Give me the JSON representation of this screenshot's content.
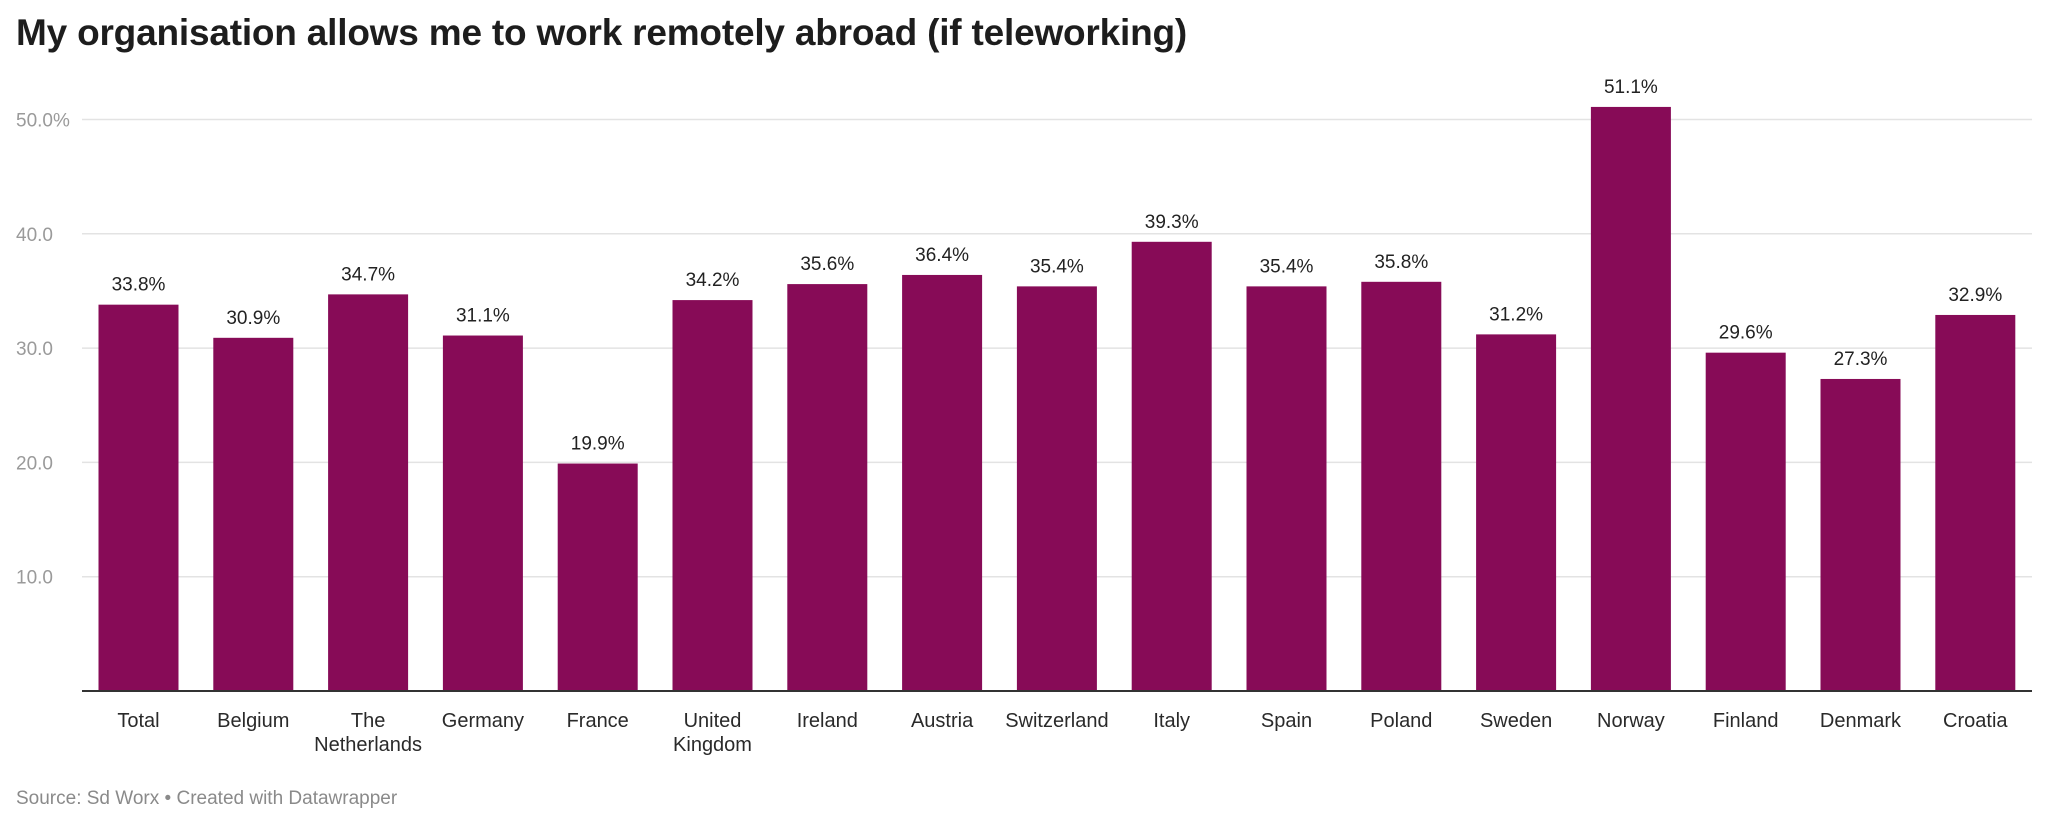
{
  "title": "My organisation allows me to work remotely abroad (if teleworking)",
  "footer": {
    "source": "Source: Sd Worx",
    "separator": " • ",
    "credit": "Created with Datawrapper"
  },
  "colors": {
    "bar": "#870b57",
    "grid": "#e3e3e3",
    "axis": "#333333"
  },
  "chart_data": {
    "type": "bar",
    "title": "My organisation allows me to work remotely abroad (if teleworking)",
    "xlabel": "",
    "ylabel": "",
    "grid": true,
    "ylim": [
      0,
      52
    ],
    "yticks": [
      10,
      20,
      30,
      40,
      50
    ],
    "ytick_labels": [
      "10.0",
      "20.0",
      "30.0",
      "40.0",
      "50.0%"
    ],
    "categories": [
      [
        "Total"
      ],
      [
        "Belgium"
      ],
      [
        "The",
        "Netherlands"
      ],
      [
        "Germany"
      ],
      [
        "France"
      ],
      [
        "United",
        "Kingdom"
      ],
      [
        "Ireland"
      ],
      [
        "Austria"
      ],
      [
        "Switzerland"
      ],
      [
        "Italy"
      ],
      [
        "Spain"
      ],
      [
        "Poland"
      ],
      [
        "Sweden"
      ],
      [
        "Norway"
      ],
      [
        "Finland"
      ],
      [
        "Denmark"
      ],
      [
        "Croatia"
      ]
    ],
    "values": [
      33.8,
      30.9,
      34.7,
      31.1,
      19.9,
      34.2,
      35.6,
      36.4,
      35.4,
      39.3,
      35.4,
      35.8,
      31.2,
      51.1,
      29.6,
      27.3,
      32.9
    ],
    "value_labels": [
      "33.8%",
      "30.9%",
      "34.7%",
      "31.1%",
      "19.9%",
      "34.2%",
      "35.6%",
      "36.4%",
      "35.4%",
      "39.3%",
      "35.4%",
      "35.8%",
      "31.2%",
      "51.1%",
      "29.6%",
      "27.3%",
      "32.9%"
    ]
  }
}
